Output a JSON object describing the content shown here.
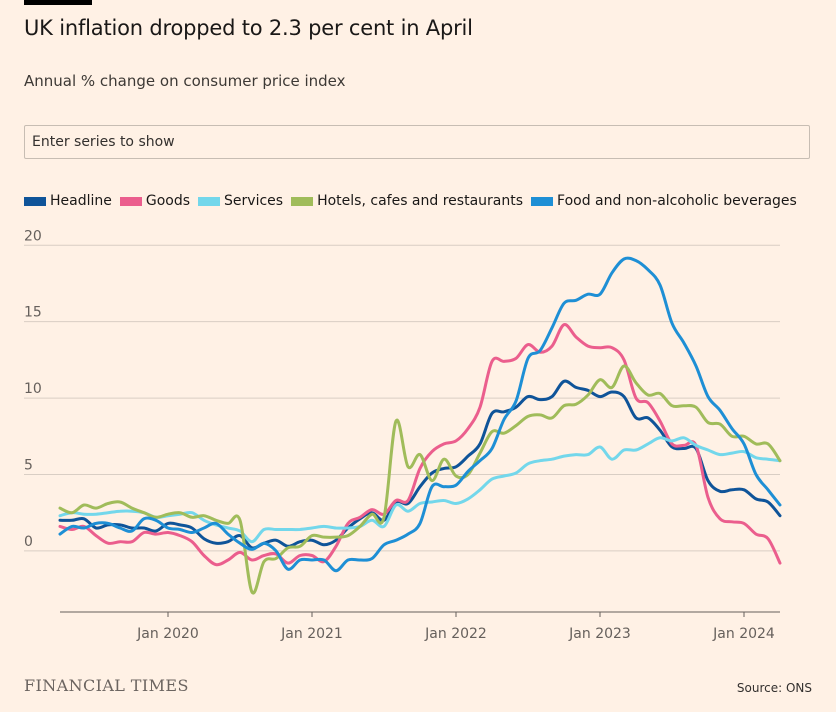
{
  "header": {
    "title": "UK inflation dropped to 2.3 per cent in April",
    "subtitle": "Annual % change on consumer price index"
  },
  "search": {
    "placeholder": "Enter series to show"
  },
  "footer": {
    "brand": "FINANCIAL TIMES",
    "source": "Source: ONS"
  },
  "chart_data": {
    "type": "line",
    "title": "UK inflation dropped to 2.3 per cent in April",
    "subtitle": "Annual % change on consumer price index",
    "xlabel": "",
    "ylabel": "",
    "ylim": [
      -4,
      21
    ],
    "xlim": [
      "2019-04",
      "2024-04"
    ],
    "yticks": [
      0,
      5,
      10,
      15,
      20
    ],
    "xticks": [
      "Jan 2020",
      "Jan 2021",
      "Jan 2022",
      "Jan 2023",
      "Jan 2024"
    ],
    "x": [
      "2019-04",
      "2019-05",
      "2019-06",
      "2019-07",
      "2019-08",
      "2019-09",
      "2019-10",
      "2019-11",
      "2019-12",
      "2020-01",
      "2020-02",
      "2020-03",
      "2020-04",
      "2020-05",
      "2020-06",
      "2020-07",
      "2020-08",
      "2020-09",
      "2020-10",
      "2020-11",
      "2020-12",
      "2021-01",
      "2021-02",
      "2021-03",
      "2021-04",
      "2021-05",
      "2021-06",
      "2021-07",
      "2021-08",
      "2021-09",
      "2021-10",
      "2021-11",
      "2021-12",
      "2022-01",
      "2022-02",
      "2022-03",
      "2022-04",
      "2022-05",
      "2022-06",
      "2022-07",
      "2022-08",
      "2022-09",
      "2022-10",
      "2022-11",
      "2022-12",
      "2023-01",
      "2023-02",
      "2023-03",
      "2023-04",
      "2023-05",
      "2023-06",
      "2023-07",
      "2023-08",
      "2023-09",
      "2023-10",
      "2023-11",
      "2023-12",
      "2024-01",
      "2024-02",
      "2024-03",
      "2024-04"
    ],
    "grid": true,
    "legend_position": "top-left",
    "series": [
      {
        "name": "Headline",
        "color": "#0f5499",
        "values": [
          2.0,
          2.0,
          2.1,
          1.5,
          1.7,
          1.7,
          1.5,
          1.5,
          1.3,
          1.8,
          1.7,
          1.5,
          0.8,
          0.5,
          0.6,
          1.0,
          0.2,
          0.5,
          0.7,
          0.3,
          0.6,
          0.7,
          0.4,
          0.7,
          1.5,
          2.1,
          2.5,
          2.0,
          3.2,
          3.1,
          4.2,
          5.1,
          5.4,
          5.5,
          6.2,
          7.0,
          9.0,
          9.1,
          9.4,
          10.1,
          9.9,
          10.1,
          11.1,
          10.7,
          10.5,
          10.1,
          10.4,
          10.1,
          8.7,
          8.7,
          7.9,
          6.8,
          6.7,
          6.7,
          4.6,
          3.9,
          4.0,
          4.0,
          3.4,
          3.2,
          2.3
        ]
      },
      {
        "name": "Goods",
        "color": "#eb5e8d",
        "values": [
          1.6,
          1.4,
          1.6,
          1.0,
          0.5,
          0.6,
          0.6,
          1.2,
          1.1,
          1.2,
          1.0,
          0.6,
          -0.3,
          -0.9,
          -0.6,
          -0.1,
          -0.6,
          -0.3,
          -0.2,
          -0.8,
          -0.3,
          -0.3,
          -0.7,
          0.3,
          1.8,
          2.2,
          2.7,
          2.4,
          3.3,
          3.3,
          5.4,
          6.5,
          7.0,
          7.2,
          8.0,
          9.4,
          12.4,
          12.4,
          12.6,
          13.5,
          13.0,
          13.4,
          14.8,
          14.0,
          13.4,
          13.3,
          13.3,
          12.5,
          10.0,
          9.7,
          8.5,
          7.0,
          6.9,
          6.9,
          3.5,
          2.1,
          1.9,
          1.8,
          1.1,
          0.8,
          -0.8
        ]
      },
      {
        "name": "Services",
        "color": "#73d7eb",
        "values": [
          2.3,
          2.5,
          2.4,
          2.4,
          2.5,
          2.6,
          2.6,
          2.5,
          2.2,
          2.3,
          2.4,
          2.5,
          2.0,
          1.7,
          1.5,
          1.3,
          0.6,
          1.4,
          1.4,
          1.4,
          1.4,
          1.5,
          1.6,
          1.5,
          1.5,
          1.6,
          2.0,
          1.6,
          3.0,
          2.6,
          3.1,
          3.2,
          3.3,
          3.1,
          3.4,
          4.0,
          4.7,
          4.9,
          5.1,
          5.7,
          5.9,
          6.0,
          6.2,
          6.3,
          6.3,
          6.8,
          6.0,
          6.6,
          6.6,
          7.0,
          7.4,
          7.2,
          7.4,
          6.9,
          6.6,
          6.3,
          6.4,
          6.5,
          6.1,
          6.0,
          5.9
        ]
      },
      {
        "name": "Hotels, cafes and restaurants",
        "color": "#a0bc5a",
        "values": [
          2.8,
          2.5,
          3.0,
          2.8,
          3.1,
          3.2,
          2.8,
          2.5,
          2.2,
          2.4,
          2.5,
          2.2,
          2.3,
          2.0,
          1.8,
          2.0,
          -2.7,
          -0.7,
          -0.5,
          0.2,
          0.3,
          1.0,
          0.9,
          0.9,
          1.0,
          1.6,
          2.4,
          2.2,
          8.5,
          5.5,
          6.3,
          4.6,
          6.0,
          4.9,
          5.0,
          6.4,
          7.8,
          7.7,
          8.2,
          8.8,
          8.9,
          8.7,
          9.5,
          9.6,
          10.2,
          11.2,
          10.7,
          12.1,
          11.0,
          10.2,
          10.3,
          9.5,
          9.5,
          9.4,
          8.4,
          8.3,
          7.5,
          7.5,
          7.0,
          7.0,
          5.9
        ]
      },
      {
        "name": "Food and non-alcoholic beverages",
        "color": "#1e8fd5",
        "values": [
          1.1,
          1.6,
          1.5,
          1.8,
          1.8,
          1.5,
          1.3,
          2.1,
          2.0,
          1.5,
          1.4,
          1.2,
          1.5,
          1.8,
          1.1,
          0.5,
          0.1,
          0.5,
          0.0,
          -1.2,
          -0.6,
          -0.6,
          -0.6,
          -1.3,
          -0.6,
          -0.6,
          -0.5,
          0.4,
          0.7,
          1.1,
          1.8,
          4.2,
          4.2,
          4.3,
          5.2,
          5.9,
          6.7,
          8.6,
          9.8,
          12.6,
          13.1,
          14.6,
          16.2,
          16.4,
          16.8,
          16.8,
          18.2,
          19.1,
          19.0,
          18.4,
          17.4,
          14.9,
          13.6,
          12.1,
          10.1,
          9.2,
          8.0,
          7.0,
          5.0,
          4.0,
          3.0
        ]
      }
    ]
  }
}
